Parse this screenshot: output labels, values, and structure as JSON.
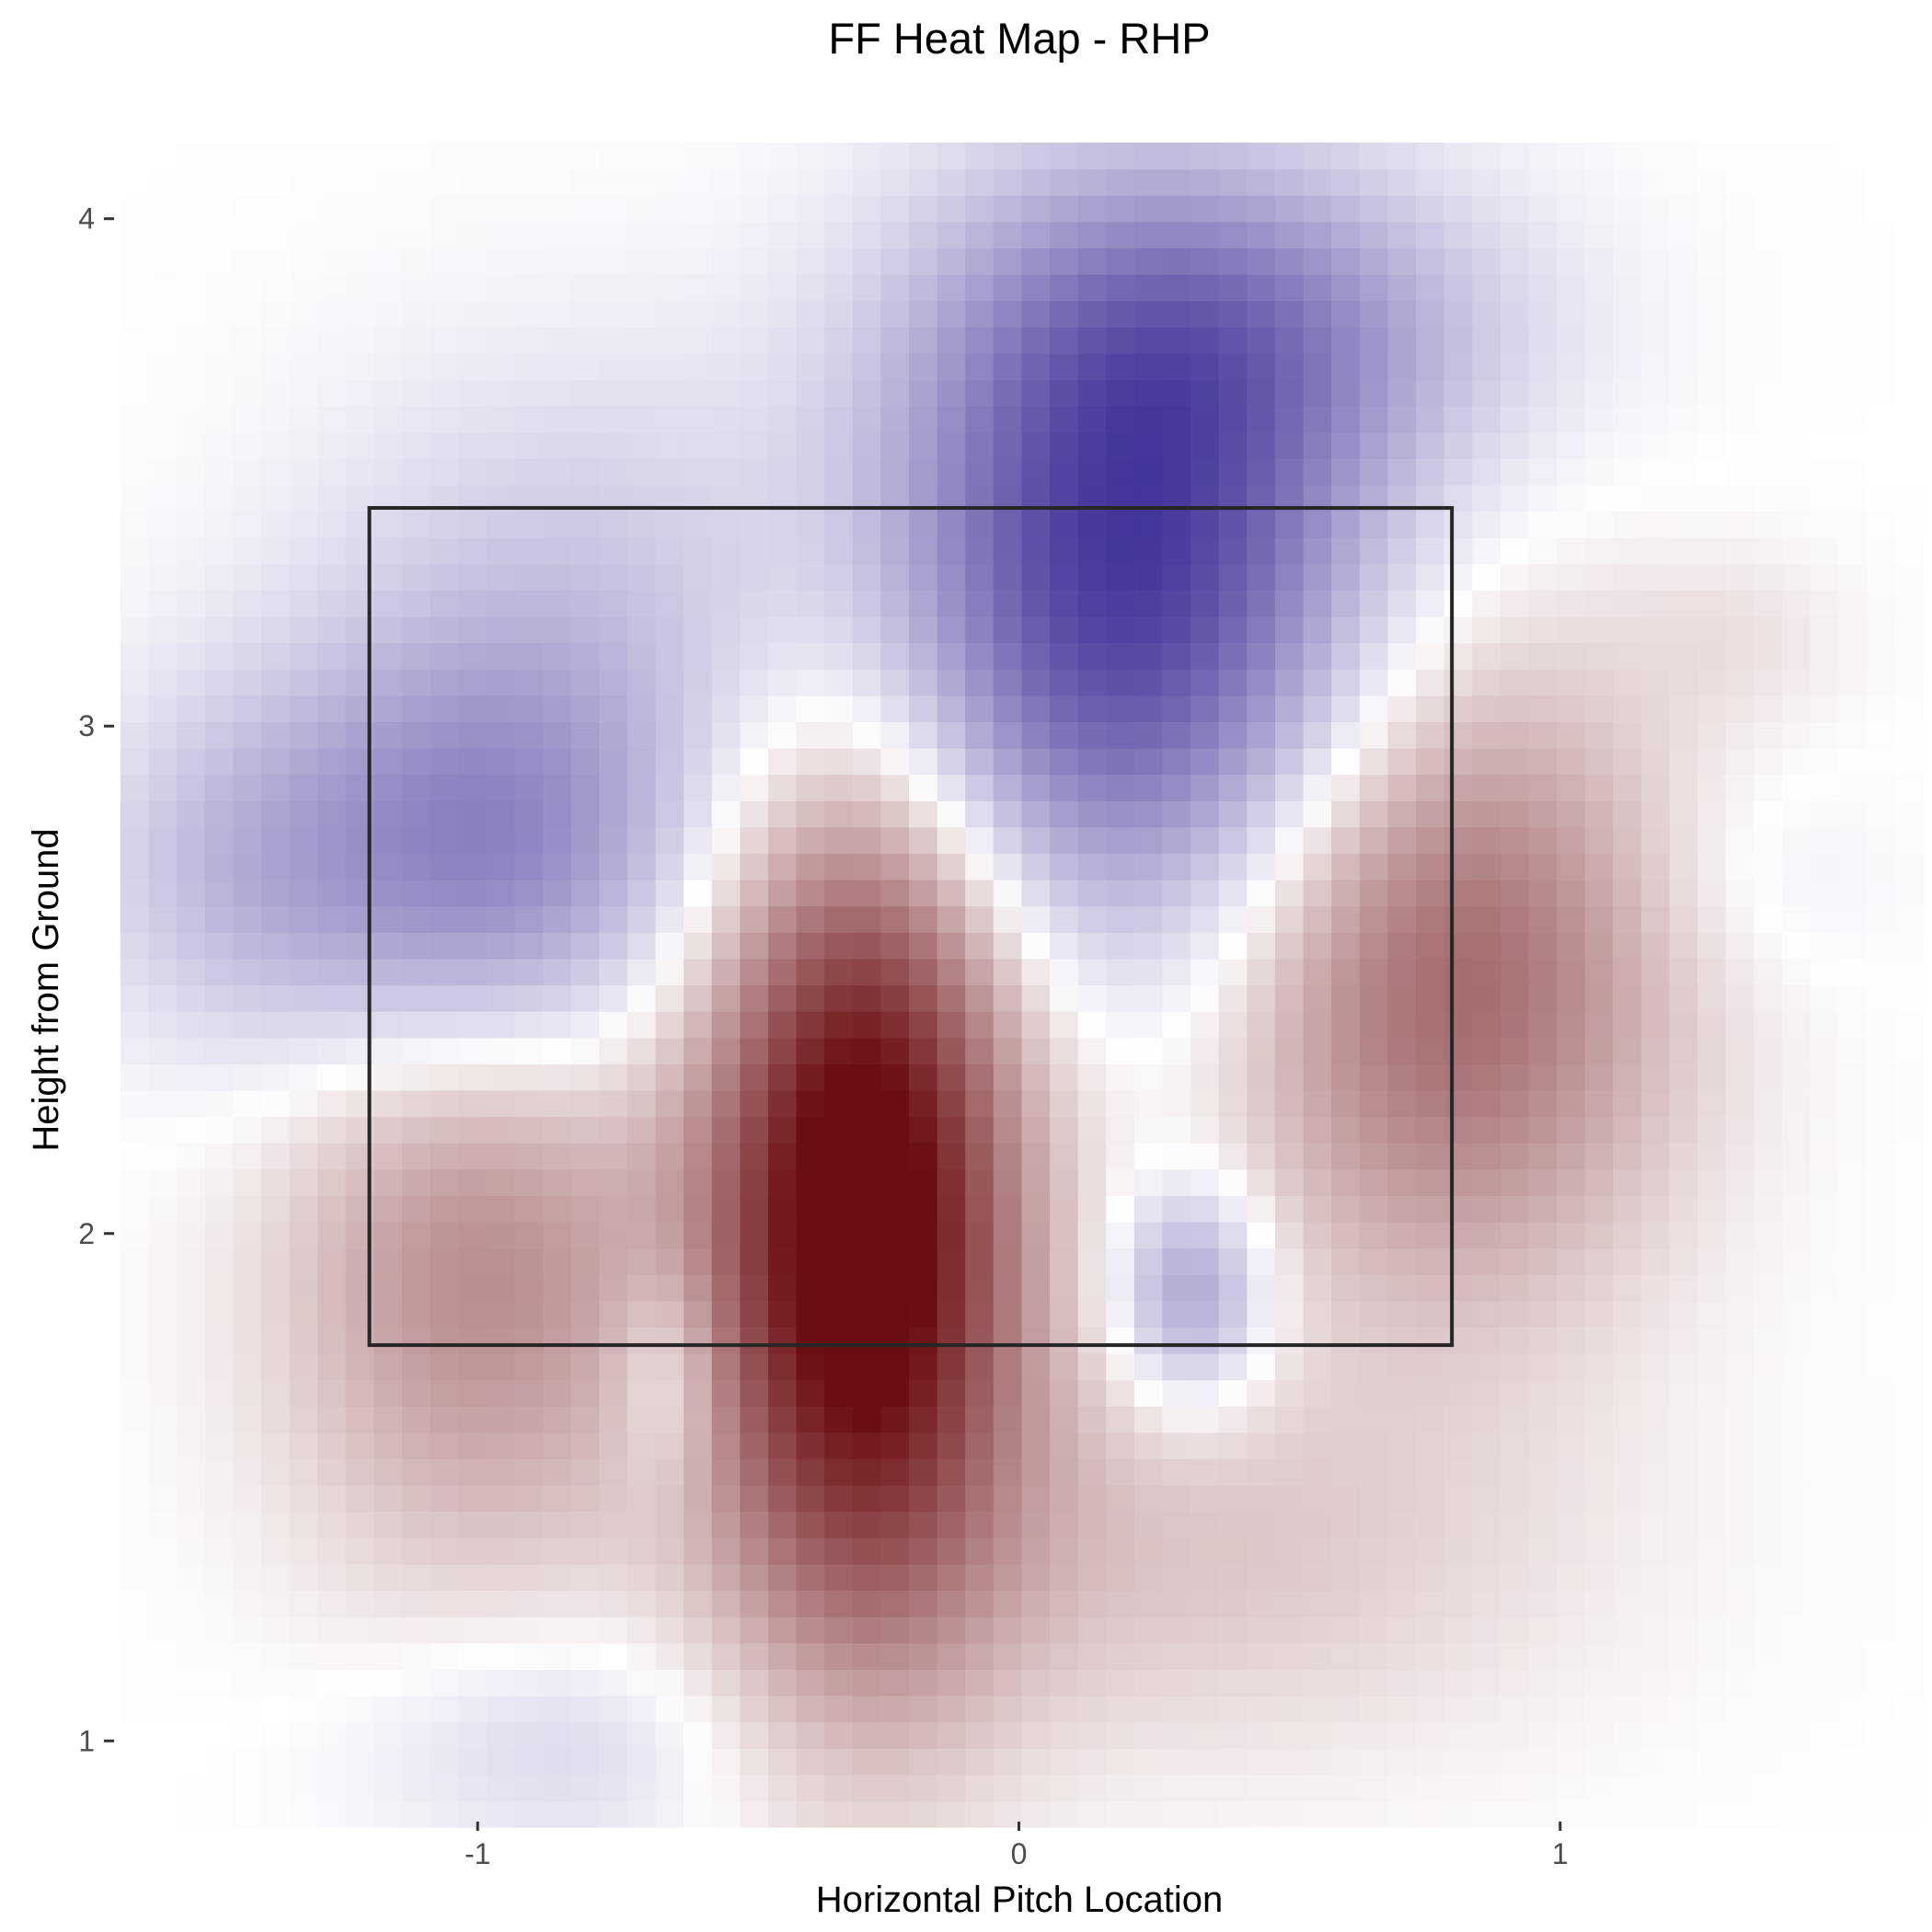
{
  "chart_data": {
    "type": "heatmap",
    "title": "FF Heat Map - RHP",
    "xlabel": "Horizontal Pitch Location",
    "ylabel": "Height from Ground",
    "xlim": [
      -1.67,
      1.67
    ],
    "ylim": [
      0.85,
      4.15
    ],
    "x_ticks": [
      -1,
      0,
      1
    ],
    "x_tick_labels": [
      "-1",
      "0",
      "1"
    ],
    "y_ticks": [
      1,
      2,
      3,
      4
    ],
    "y_tick_labels": [
      "1",
      "2",
      "3",
      "4"
    ],
    "grid": false,
    "legend": "none",
    "data_extent": {
      "x": [
        -1.66,
        1.67
      ],
      "y": [
        0.83,
        4.15
      ]
    },
    "strike_zone": {
      "x": [
        -1.2,
        0.8
      ],
      "y": [
        1.78,
        3.43
      ]
    },
    "colors": {
      "positive": "#6b0e12",
      "negative": "#3d2f96",
      "neutral": "#ffffff",
      "zone_border": "#262626"
    },
    "value_range": [
      -1,
      1
    ],
    "components": [
      {
        "x": -0.29,
        "y": 2.03,
        "sx": 0.2,
        "sy": 0.55,
        "value": 1.2
      },
      {
        "x": 0.8,
        "y": 2.5,
        "sx": 0.28,
        "sy": 0.42,
        "value": 0.58
      },
      {
        "x": -1.0,
        "y": 1.95,
        "sx": 0.25,
        "sy": 0.42,
        "value": 0.42
      },
      {
        "x": 0.28,
        "y": 1.38,
        "sx": 0.5,
        "sy": 0.28,
        "value": 0.18
      },
      {
        "x": 1.32,
        "y": 3.18,
        "sx": 0.15,
        "sy": 0.12,
        "value": 0.07
      },
      {
        "x": 0.2,
        "y": 3.3,
        "sx": 0.3,
        "sy": 0.45,
        "value": -0.93
      },
      {
        "x": 0.42,
        "y": 3.78,
        "sx": 0.35,
        "sy": 0.22,
        "value": -0.35
      },
      {
        "x": -1.0,
        "y": 2.72,
        "sx": 0.27,
        "sy": 0.3,
        "value": -0.55
      },
      {
        "x": -1.45,
        "y": 2.72,
        "sx": 0.2,
        "sy": 0.25,
        "value": -0.2
      },
      {
        "x": 0.32,
        "y": 1.88,
        "sx": 0.1,
        "sy": 0.15,
        "value": -0.42
      },
      {
        "x": -0.65,
        "y": 1.72,
        "sx": 0.07,
        "sy": 0.16,
        "value": -0.22
      },
      {
        "x": -0.85,
        "y": 1.0,
        "sx": 0.25,
        "sy": 0.17,
        "value": -0.15
      },
      {
        "x": -0.8,
        "y": 3.25,
        "sx": 0.35,
        "sy": 0.35,
        "value": -0.18
      },
      {
        "x": 1.35,
        "y": 2.7,
        "sx": 0.18,
        "sy": 0.15,
        "value": -0.07
      }
    ]
  }
}
